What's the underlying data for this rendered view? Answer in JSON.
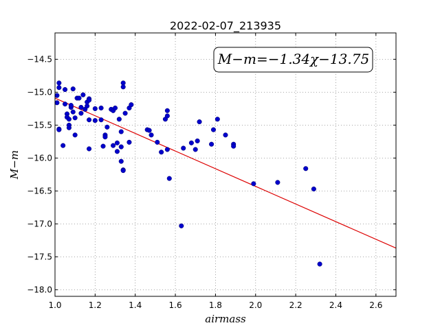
{
  "chart_data": {
    "type": "scatter",
    "title": "2022-02-07_213935",
    "xlabel": "airmass",
    "ylabel": "M−m",
    "xlim": [
      1.0,
      2.7
    ],
    "ylim": [
      -18.1,
      -14.1
    ],
    "x_ticks": [
      1.0,
      1.2,
      1.4,
      1.6,
      1.8,
      2.0,
      2.2,
      2.4,
      2.6
    ],
    "x_tick_labels": [
      "1.0",
      "1.2",
      "1.4",
      "1.6",
      "1.8",
      "2.0",
      "2.2",
      "2.4",
      "2.6"
    ],
    "y_ticks": [
      -14.5,
      -15.0,
      -15.5,
      -16.0,
      -16.5,
      -17.0,
      -17.5,
      -18.0
    ],
    "y_tick_labels": [
      "−14.5",
      "−15.0",
      "−15.5",
      "−16.0",
      "−16.5",
      "−17.0",
      "−17.5",
      "−18.0"
    ],
    "grid": true,
    "annotation": "M−m=−1.34χ−13.75",
    "fit": {
      "slope": -1.34,
      "intercept": -13.75
    },
    "colors": {
      "points": "#0000cc",
      "fit_line": "#dd0000",
      "grid": "#888888"
    },
    "points": [
      [
        1.01,
        -15.05
      ],
      [
        1.01,
        -15.16
      ],
      [
        1.02,
        -14.86
      ],
      [
        1.02,
        -14.93
      ],
      [
        1.02,
        -15.56
      ],
      [
        1.02,
        -15.57
      ],
      [
        1.04,
        -15.81
      ],
      [
        1.05,
        -15.18
      ],
      [
        1.05,
        -14.96
      ],
      [
        1.06,
        -15.33
      ],
      [
        1.06,
        -15.38
      ],
      [
        1.07,
        -15.41
      ],
      [
        1.07,
        -15.5
      ],
      [
        1.07,
        -15.54
      ],
      [
        1.08,
        -15.23
      ],
      [
        1.08,
        -15.2
      ],
      [
        1.09,
        -15.3
      ],
      [
        1.09,
        -14.95
      ],
      [
        1.1,
        -15.39
      ],
      [
        1.1,
        -15.65
      ],
      [
        1.11,
        -15.09
      ],
      [
        1.12,
        -15.09
      ],
      [
        1.13,
        -15.23
      ],
      [
        1.13,
        -15.32
      ],
      [
        1.14,
        -15.04
      ],
      [
        1.15,
        -15.26
      ],
      [
        1.16,
        -15.21
      ],
      [
        1.16,
        -15.15
      ],
      [
        1.17,
        -15.1
      ],
      [
        1.17,
        -15.12
      ],
      [
        1.17,
        -15.86
      ],
      [
        1.17,
        -15.42
      ],
      [
        1.2,
        -15.25
      ],
      [
        1.2,
        -15.43
      ],
      [
        1.23,
        -15.24
      ],
      [
        1.23,
        -15.42
      ],
      [
        1.24,
        -15.82
      ],
      [
        1.25,
        -15.65
      ],
      [
        1.25,
        -15.68
      ],
      [
        1.26,
        -15.53
      ],
      [
        1.28,
        -15.26
      ],
      [
        1.29,
        -15.28
      ],
      [
        1.29,
        -15.81
      ],
      [
        1.3,
        -15.24
      ],
      [
        1.31,
        -15.77
      ],
      [
        1.31,
        -15.9
      ],
      [
        1.32,
        -15.41
      ],
      [
        1.33,
        -15.6
      ],
      [
        1.33,
        -15.83
      ],
      [
        1.33,
        -16.05
      ],
      [
        1.34,
        -14.86
      ],
      [
        1.34,
        -14.92
      ],
      [
        1.34,
        -16.18
      ],
      [
        1.34,
        -16.19
      ],
      [
        1.35,
        -15.32
      ],
      [
        1.37,
        -15.76
      ],
      [
        1.37,
        -15.24
      ],
      [
        1.38,
        -15.19
      ],
      [
        1.46,
        -15.57
      ],
      [
        1.47,
        -15.58
      ],
      [
        1.48,
        -15.65
      ],
      [
        1.51,
        -15.76
      ],
      [
        1.53,
        -15.91
      ],
      [
        1.55,
        -15.41
      ],
      [
        1.56,
        -15.36
      ],
      [
        1.56,
        -15.28
      ],
      [
        1.56,
        -15.87
      ],
      [
        1.57,
        -16.31
      ],
      [
        1.63,
        -17.03
      ],
      [
        1.64,
        -15.85
      ],
      [
        1.68,
        -15.77
      ],
      [
        1.7,
        -15.87
      ],
      [
        1.71,
        -15.74
      ],
      [
        1.72,
        -15.45
      ],
      [
        1.78,
        -15.79
      ],
      [
        1.79,
        -15.57
      ],
      [
        1.81,
        -15.41
      ],
      [
        1.85,
        -15.65
      ],
      [
        1.89,
        -15.79
      ],
      [
        1.89,
        -15.82
      ],
      [
        1.99,
        -16.39
      ],
      [
        2.11,
        -16.37
      ],
      [
        2.25,
        -16.16
      ],
      [
        2.29,
        -16.47
      ],
      [
        2.32,
        -17.61
      ]
    ]
  }
}
